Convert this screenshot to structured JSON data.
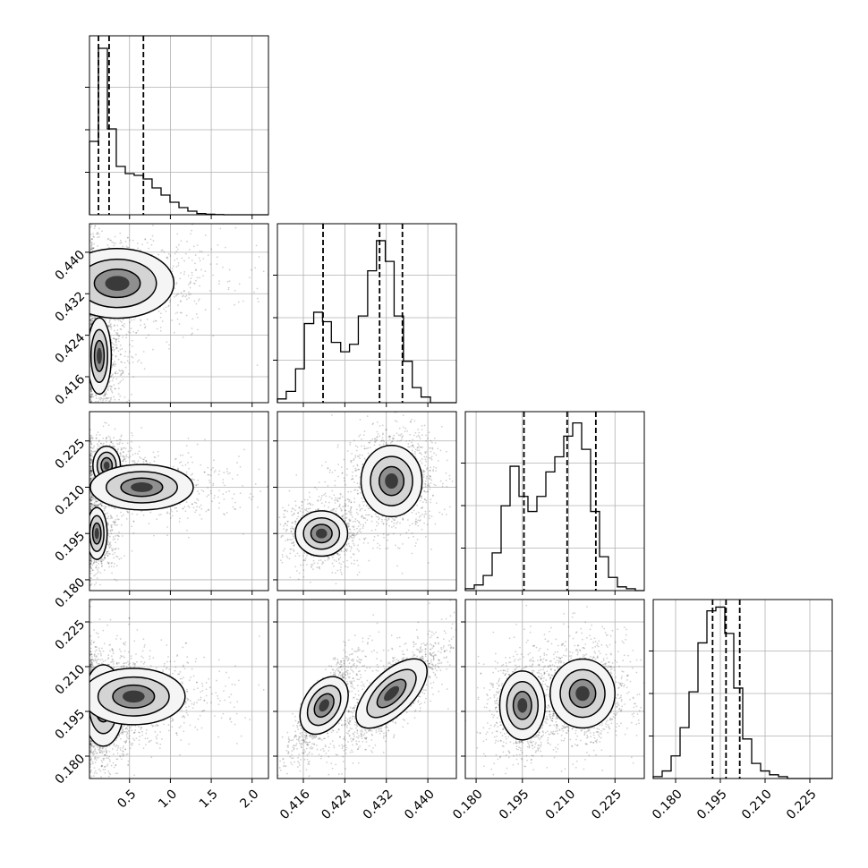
{
  "chart_data": {
    "type": "corner",
    "parameters": [
      {
        "range": [
          0.01,
          2.2
        ],
        "ticks": [
          0.5,
          1.0,
          1.5,
          2.0
        ],
        "tick_labels": [
          "0.5",
          "1.0",
          "1.5",
          "2.0"
        ]
      },
      {
        "range": [
          0.411,
          0.4455
        ],
        "ticks": [
          0.416,
          0.424,
          0.432,
          0.44
        ],
        "tick_labels": [
          "0.416",
          "0.424",
          "0.432",
          "0.440"
        ]
      },
      {
        "range": [
          0.1765,
          0.2345
        ],
        "ticks": [
          0.18,
          0.195,
          0.21,
          0.225
        ],
        "tick_labels": [
          "0.180",
          "0.195",
          "0.210",
          "0.225"
        ]
      },
      {
        "range": [
          0.1725,
          0.2325
        ],
        "ticks": [
          0.18,
          0.195,
          0.21,
          0.225
        ],
        "tick_labels": [
          "0.180",
          "0.195",
          "0.210",
          "0.225"
        ]
      }
    ],
    "histograms": [
      {
        "edges": [
          0.01,
          0.119,
          0.229,
          0.338,
          0.448,
          0.557,
          0.667,
          0.776,
          0.886,
          0.995,
          1.105,
          1.214,
          1.324,
          1.433,
          1.543,
          1.652,
          1.762,
          1.871,
          1.981,
          2.09,
          2.2
        ],
        "counts": [
          0.41,
          0.93,
          0.48,
          0.27,
          0.23,
          0.22,
          0.2,
          0.15,
          0.11,
          0.07,
          0.04,
          0.02,
          0.007,
          0.003,
          0.001,
          0,
          0,
          0,
          0,
          0
        ],
        "quantiles": [
          0.12,
          0.25,
          0.67
        ],
        "ymax": 1.0
      },
      {
        "edges": [
          0.411,
          0.4127,
          0.4145,
          0.4162,
          0.418,
          0.4197,
          0.4214,
          0.4232,
          0.4249,
          0.4266,
          0.4284,
          0.4301,
          0.4318,
          0.4335,
          0.4353,
          0.437,
          0.4387,
          0.4405,
          0.4422,
          0.444,
          0.4455
        ],
        "counts": [
          0.02,
          0.06,
          0.18,
          0.42,
          0.48,
          0.43,
          0.32,
          0.27,
          0.31,
          0.46,
          0.7,
          0.86,
          0.75,
          0.46,
          0.22,
          0.08,
          0.03,
          0.0,
          0.0,
          0.0
        ],
        "quantiles": [
          0.4198,
          0.4307,
          0.4351
        ],
        "ymax": 0.95
      },
      {
        "edges": [
          0.1765,
          0.1794,
          0.1823,
          0.1852,
          0.1881,
          0.191,
          0.1939,
          0.1968,
          0.1997,
          0.2026,
          0.2055,
          0.2084,
          0.2113,
          0.2142,
          0.2171,
          0.22,
          0.2229,
          0.2258,
          0.2287,
          0.2316,
          0.2345
        ],
        "counts": [
          0.01,
          0.03,
          0.08,
          0.2,
          0.45,
          0.66,
          0.5,
          0.42,
          0.5,
          0.63,
          0.71,
          0.82,
          0.89,
          0.75,
          0.42,
          0.18,
          0.07,
          0.02,
          0.01,
          0.0
        ],
        "quantiles": [
          0.1955,
          0.2095,
          0.2188
        ],
        "ymax": 0.95
      },
      {
        "edges": [
          0.1725,
          0.1755,
          0.1785,
          0.1815,
          0.1845,
          0.1875,
          0.1905,
          0.1935,
          0.1965,
          0.1995,
          0.2025,
          0.2055,
          0.2085,
          0.2115,
          0.2145,
          0.2175,
          0.2205,
          0.2235,
          0.2265,
          0.2295,
          0.2325
        ],
        "counts": [
          0.01,
          0.04,
          0.12,
          0.27,
          0.46,
          0.72,
          0.89,
          0.91,
          0.77,
          0.48,
          0.21,
          0.08,
          0.04,
          0.02,
          0.01,
          0.0,
          0.0,
          0.0,
          0.0,
          0.0
        ],
        "quantiles": [
          0.1924,
          0.1969,
          0.2015
        ],
        "ymax": 0.95
      }
    ],
    "pairs": [
      {
        "x": 0,
        "y": 1,
        "modes": [
          {
            "cx": 0.13,
            "cy": 0.42,
            "sx": 0.07,
            "sy": 0.0035,
            "w": 0.55
          },
          {
            "cx": 0.35,
            "cy": 0.434,
            "sx": 0.33,
            "sy": 0.0032,
            "w": 0.45
          }
        ]
      },
      {
        "x": 0,
        "y": 2,
        "modes": [
          {
            "cx": 0.1,
            "cy": 0.195,
            "sx": 0.06,
            "sy": 0.004,
            "w": 0.35
          },
          {
            "cx": 0.22,
            "cy": 0.217,
            "sx": 0.08,
            "sy": 0.003,
            "w": 0.3
          },
          {
            "cx": 0.65,
            "cy": 0.21,
            "sx": 0.3,
            "sy": 0.0035,
            "w": 0.35
          }
        ]
      },
      {
        "x": 0,
        "y": 3,
        "modes": [
          {
            "cx": 0.18,
            "cy": 0.197,
            "sx": 0.12,
            "sy": 0.0065,
            "w": 0.6
          },
          {
            "cx": 0.55,
            "cy": 0.2,
            "sx": 0.3,
            "sy": 0.0045,
            "w": 0.4
          }
        ]
      },
      {
        "x": 1,
        "y": 2,
        "modes": [
          {
            "cx": 0.4195,
            "cy": 0.195,
            "sx": 0.0024,
            "sy": 0.0035,
            "w": 0.4
          },
          {
            "cx": 0.433,
            "cy": 0.212,
            "sx": 0.0028,
            "sy": 0.0055,
            "w": 0.6
          }
        ]
      },
      {
        "x": 1,
        "y": 3,
        "modes": [
          {
            "cx": 0.42,
            "cy": 0.197,
            "sx": 0.0023,
            "sy": 0.0062,
            "w": 0.4,
            "rho": 0.85
          },
          {
            "cx": 0.433,
            "cy": 0.201,
            "sx": 0.0033,
            "sy": 0.006,
            "w": 0.6,
            "rho": 0.8
          }
        ]
      },
      {
        "x": 2,
        "y": 3,
        "modes": [
          {
            "cx": 0.195,
            "cy": 0.197,
            "sx": 0.0035,
            "sy": 0.0055,
            "w": 0.45
          },
          {
            "cx": 0.2145,
            "cy": 0.201,
            "sx": 0.005,
            "sy": 0.0055,
            "w": 0.55
          }
        ]
      }
    ],
    "grid": true,
    "color": "#000000"
  }
}
